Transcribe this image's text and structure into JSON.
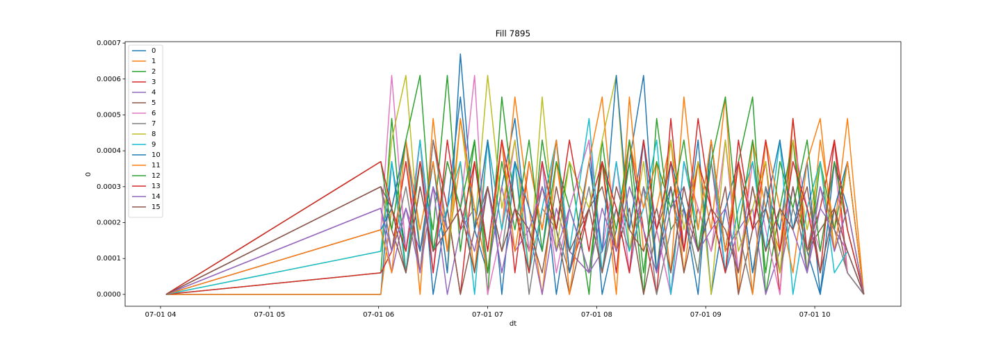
{
  "chart_data": {
    "type": "line",
    "title": "Fill 7895",
    "xlabel": "dt",
    "ylabel": "0",
    "x": [
      4.05,
      6.02,
      6.12,
      6.25,
      6.38,
      6.5,
      6.63,
      6.75,
      6.88,
      7.0,
      7.13,
      7.25,
      7.38,
      7.5,
      7.63,
      7.75,
      7.93,
      8.05,
      8.18,
      8.3,
      8.43,
      8.55,
      8.68,
      8.8,
      8.93,
      9.05,
      9.18,
      9.3,
      9.43,
      9.55,
      9.68,
      9.8,
      9.93,
      10.05,
      10.18,
      10.3,
      10.45
    ],
    "xlim": [
      3.675,
      10.79
    ],
    "xticks": [
      {
        "value": 4,
        "label": "07-01 04"
      },
      {
        "value": 5,
        "label": "07-01 05"
      },
      {
        "value": 6,
        "label": "07-01 06"
      },
      {
        "value": 7,
        "label": "07-01 07"
      },
      {
        "value": 8,
        "label": "07-01 08"
      },
      {
        "value": 9,
        "label": "07-01 09"
      },
      {
        "value": 10,
        "label": "07-01 10"
      }
    ],
    "ylim": [
      -3.3e-05,
      0.000704
    ],
    "yticks": [
      {
        "value": 0,
        "label": "0.0000"
      },
      {
        "value": 0.0001,
        "label": "0.0001"
      },
      {
        "value": 0.0002,
        "label": "0.0002"
      },
      {
        "value": 0.0003,
        "label": "0.0003"
      },
      {
        "value": 0.0004,
        "label": "0.0004"
      },
      {
        "value": 0.0005,
        "label": "0.0005"
      },
      {
        "value": 0.0006,
        "label": "0.0006"
      },
      {
        "value": 0.0007,
        "label": "0.0007"
      }
    ],
    "legend": "upper left",
    "series": [
      {
        "name": "0",
        "color": "#1f77b4",
        "values": [
          0,
          0,
          0.00037,
          0.00012,
          0.00043,
          0,
          0.00024,
          0.00055,
          0.00018,
          6e-05,
          0.0003,
          0.00049,
          0.00012,
          0.00037,
          0,
          0.00024,
          0.00043,
          0,
          0.00018,
          0.00037,
          0.00061,
          6e-05,
          0.0003,
          0.00012,
          0.00043,
          0,
          0.00024,
          0.00037,
          6e-05,
          0.0003,
          0.00018,
          0.00043,
          0.00012,
          0,
          0.00037,
          0.00024,
          0
        ]
      },
      {
        "name": "1",
        "color": "#ff7f0e",
        "values": [
          0,
          0,
          0.00024,
          0.00043,
          0,
          0.00049,
          0.00012,
          0.00037,
          6e-05,
          0.00043,
          0.00018,
          0.00055,
          0.00024,
          0,
          0.00037,
          0.00012,
          6e-05,
          0.00037,
          0,
          0.00055,
          0.00012,
          0.00024,
          0.00043,
          6e-05,
          0.00037,
          0.00018,
          0.00055,
          0,
          0.00043,
          0.00024,
          0.00012,
          0.00049,
          6e-05,
          0.00043,
          0.00018,
          0.00049,
          0
        ]
      },
      {
        "name": "2",
        "color": "#2ca02c",
        "values": [
          0,
          6e-05,
          0.00049,
          6e-05,
          0.00037,
          0.00018,
          0.00061,
          0.00012,
          0.00043,
          0,
          0.00055,
          0.00024,
          6e-05,
          0.00043,
          0.00018,
          0.00037,
          0,
          0.00043,
          0.00012,
          0.00037,
          0,
          0.00049,
          0.00018,
          0.00024,
          6e-05,
          0.00043,
          0.00012,
          0.00037,
          0.00055,
          0,
          0.00024,
          0.00043,
          6e-05,
          0.00037,
          0.00018,
          0.00037,
          0
        ]
      },
      {
        "name": "3",
        "color": "#d62728",
        "values": [
          0,
          6e-05,
          0.00012,
          0.00037,
          6e-05,
          0.00043,
          0.00024,
          0,
          0.00037,
          0.00012,
          0.00043,
          6e-05,
          0.00037,
          0.00018,
          0.00043,
          6e-05,
          0.00024,
          0.00037,
          6e-05,
          0.00043,
          0.00018,
          0,
          0.00049,
          0.00012,
          0.00037,
          0.00024,
          6e-05,
          0.00043,
          0.00018,
          0.00037,
          0,
          0.00049,
          0.00012,
          0.00024,
          0.00043,
          6e-05,
          0
        ]
      },
      {
        "name": "4",
        "color": "#9467bd",
        "values": [
          0,
          0.00024,
          6e-05,
          0.00024,
          0.00012,
          0.0003,
          0,
          0.00018,
          0.00024,
          6e-05,
          0.0003,
          0.00012,
          0.00018,
          0,
          0.00024,
          0.00012,
          6e-05,
          0.00012,
          0.00024,
          6e-05,
          0.0003,
          0.00018,
          0,
          0.00024,
          0.00012,
          0.00037,
          6e-05,
          0.00018,
          0.00024,
          0,
          0.00012,
          0.0003,
          6e-05,
          0.00024,
          0.00018,
          0.00012,
          0
        ]
      },
      {
        "name": "5",
        "color": "#8c564b",
        "values": [
          0,
          0.0003,
          0.00018,
          6e-05,
          0.0003,
          0.00012,
          0.00024,
          0,
          0.00018,
          0.0003,
          6e-05,
          0.00024,
          0.00012,
          0.0003,
          0.00018,
          0,
          0.00024,
          0.0003,
          0.00012,
          0.00024,
          0,
          0.00018,
          0.0003,
          6e-05,
          0.00024,
          0.00012,
          0.0003,
          0,
          0.00018,
          0.00024,
          6e-05,
          0.0003,
          0.00012,
          0.00018,
          0.00024,
          6e-05,
          0
        ]
      },
      {
        "name": "6",
        "color": "#e377c2",
        "values": [
          0,
          0.00018,
          0.00061,
          0.00012,
          0.00043,
          6e-05,
          0.00037,
          0.00024,
          0.00061,
          0,
          0.00018,
          0.00043,
          0.00012,
          0.00037,
          6e-05,
          0.00024,
          0.00043,
          0.00012,
          0.00037,
          6e-05,
          0.00043,
          0.00018,
          0,
          0.00037,
          0.00024,
          0.00012,
          0.00043,
          6e-05,
          0.00037,
          0.00018,
          0,
          0.00043,
          0.00024,
          0.00012,
          0.00037,
          6e-05,
          0
        ]
      },
      {
        "name": "7",
        "color": "#7f7f7f",
        "values": [
          0,
          0.0003,
          0.00012,
          0.0003,
          6e-05,
          0.00043,
          0.00018,
          0.00024,
          6e-05,
          0.0003,
          0.00012,
          0.00037,
          0,
          0.00024,
          0.00018,
          6e-05,
          0.0003,
          6e-05,
          0.00024,
          0.00012,
          0.0003,
          0,
          0.00018,
          0.00024,
          6e-05,
          0.00037,
          0.00012,
          0.00018,
          0,
          0.0003,
          6e-05,
          0.00024,
          0.00012,
          0.0003,
          0.00018,
          6e-05,
          0
        ]
      },
      {
        "name": "8",
        "color": "#bcbd22",
        "values": [
          0,
          0.00012,
          0.00043,
          0.00061,
          0.00012,
          0.00037,
          6e-05,
          0.00049,
          0.00018,
          0.00061,
          0.00024,
          0.00043,
          6e-05,
          0.00055,
          0.00012,
          0.00037,
          0.00024,
          0.00043,
          0.00061,
          0.00012,
          0.00037,
          6e-05,
          0.00043,
          0.00018,
          0.00037,
          0,
          0.00043,
          0.00012,
          0.00024,
          0.00037,
          6e-05,
          0.00043,
          0.00018,
          0.00037,
          0.00012,
          0.00024,
          0
        ]
      },
      {
        "name": "9",
        "color": "#17becf",
        "values": [
          0,
          0.00012,
          0.00037,
          6e-05,
          0.00043,
          0.00012,
          0.00024,
          0.00037,
          0,
          0.00043,
          0.00018,
          0.00037,
          6e-05,
          0.00024,
          0.00043,
          0.00012,
          0.00049,
          6e-05,
          0.00037,
          0.00012,
          0.00024,
          0.00043,
          0,
          0.00037,
          0.00018,
          0.00043,
          6e-05,
          0.00024,
          0.00037,
          0.00012,
          0.00043,
          0,
          0.00024,
          0.00037,
          6e-05,
          0.00012,
          0
        ]
      },
      {
        "name": "10",
        "color": "#1f77b4",
        "values": [
          0,
          0.00018,
          0.00024,
          0.00043,
          0.00012,
          0.00037,
          6e-05,
          0.00067,
          0.00018,
          0.00043,
          0,
          0.00037,
          0.00024,
          0.00012,
          0.00043,
          6e-05,
          0.00037,
          0.00012,
          0.00061,
          0.00018,
          0.00043,
          6e-05,
          0.00037,
          0.00024,
          0,
          0.00043,
          0.00012,
          0.00037,
          6e-05,
          0.00024,
          0.00043,
          0.00018,
          0.00037,
          0,
          0.00024,
          0.00037,
          0
        ]
      },
      {
        "name": "11",
        "color": "#ff7f0e",
        "values": [
          0,
          0.00018,
          6e-05,
          0.00043,
          0.00018,
          0.00037,
          0.00012,
          0.00049,
          0.00024,
          6e-05,
          0.00043,
          0.00012,
          0.00037,
          0.00018,
          0.00043,
          0,
          0.00037,
          0.00055,
          0.00012,
          0.00043,
          0.00024,
          0.00037,
          6e-05,
          0.00055,
          0.00018,
          0.00043,
          0.00012,
          0.00037,
          0,
          0.00043,
          0.00024,
          6e-05,
          0.00037,
          0.00049,
          0.00012,
          0.00037,
          0
        ]
      },
      {
        "name": "12",
        "color": "#2ca02c",
        "values": [
          0,
          0.00037,
          0.00018,
          0.00043,
          0.00061,
          0.00012,
          0.00037,
          0.00024,
          0.00043,
          6e-05,
          0.00037,
          0.00018,
          0.00043,
          0.00012,
          0.00037,
          0.00024,
          6e-05,
          0.00037,
          0.00018,
          0.00043,
          6e-05,
          0.00037,
          0.00024,
          0.00043,
          0.00012,
          0.00037,
          0.00055,
          0.00018,
          0.00043,
          6e-05,
          0.00037,
          0.00024,
          0.00043,
          0.00012,
          0.00037,
          0.00018,
          0
        ]
      },
      {
        "name": "13",
        "color": "#d62728",
        "values": [
          0,
          0.00037,
          0.00024,
          0.00012,
          0.00037,
          6e-05,
          0.00043,
          0.00018,
          0.00037,
          0.00012,
          0.00043,
          0.00024,
          6e-05,
          0.00037,
          0.00018,
          0.00043,
          0.00012,
          0.00037,
          0.00024,
          6e-05,
          0.00043,
          0.00018,
          0.00037,
          0.00012,
          0.00049,
          0.00024,
          6e-05,
          0.00037,
          0.00018,
          0.00043,
          0.00012,
          0.00037,
          0.00024,
          6e-05,
          0.00043,
          0.00018,
          0
        ]
      },
      {
        "name": "14",
        "color": "#9467bd",
        "values": [
          0,
          0.00024,
          0.00012,
          0.00024,
          6e-05,
          0.0003,
          0.00018,
          0.00024,
          0.00012,
          0.0003,
          6e-05,
          0.00024,
          0.00018,
          0.0003,
          0.00012,
          0.00024,
          6e-05,
          0.00024,
          0.00012,
          0.0003,
          0.00018,
          6e-05,
          0.00024,
          0.0003,
          0.00012,
          0.00018,
          0.00024,
          6e-05,
          0.0003,
          0.00012,
          0.00024,
          0.00018,
          6e-05,
          0.0003,
          0.00012,
          0.00024,
          0
        ]
      },
      {
        "name": "15",
        "color": "#8c564b",
        "values": [
          0,
          0.0003,
          0.00024,
          6e-05,
          0.0003,
          0.00012,
          0.00018,
          0.00024,
          6e-05,
          0.0003,
          0.00012,
          0.00024,
          0.00018,
          6e-05,
          0.0003,
          0.00012,
          0.00024,
          6e-05,
          0.0003,
          0.00018,
          0.00012,
          0.00024,
          6e-05,
          0.0003,
          0.00012,
          0.00024,
          0.00018,
          6e-05,
          0.0003,
          0.00012,
          0.00024,
          0.00018,
          0.0003,
          6e-05,
          0.00024,
          0.00012,
          0
        ]
      }
    ]
  }
}
